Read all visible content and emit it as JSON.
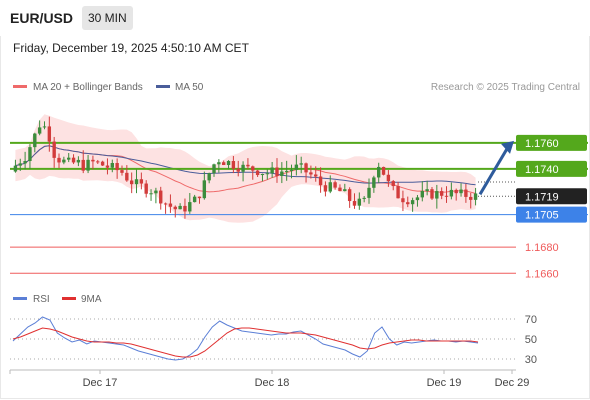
{
  "header": {
    "pair": "EUR/USD",
    "timeframe": "30 MIN",
    "datetime": "Friday, December 19, 2025 4:50:10 AM CET",
    "copyright": "Research © 2025 Trading Central"
  },
  "legend": {
    "ma20": "MA 20 + Bollinger Bands",
    "ma50": "MA 50",
    "rsi": "RSI",
    "rsi_ma": "9MA"
  },
  "colors": {
    "candle_up": "#3c8c3c",
    "candle_down": "#d23c3c",
    "ma20": "#ef6a6a",
    "ma50": "#4a5d9a",
    "bollinger": "#fde2e2",
    "resistance": "#54a81c",
    "support": "#3d82e8",
    "target": "#ef5b5b",
    "arrow": "#2e5b9c",
    "rsi": "#5b7fd6",
    "rsi_ma": "#e03030"
  },
  "chart_data": [
    {
      "type": "candlestick",
      "title": "EUR/USD",
      "timeframe": "30 MIN",
      "x_ticks": [
        "Dec 17",
        "Dec 18",
        "Dec 19",
        "Dec 29"
      ],
      "last_price": 1.1719,
      "ylim": [
        1.1651,
        1.1789
      ],
      "price_path": [
        1.1738,
        1.1745,
        1.175,
        1.1762,
        1.1775,
        1.177,
        1.175,
        1.1746,
        1.1744,
        1.1745,
        1.1742,
        1.1745,
        1.1744,
        1.1742,
        1.174,
        1.1738,
        1.1732,
        1.1728,
        1.1726,
        1.1724,
        1.172,
        1.1714,
        1.171,
        1.1708,
        1.1712,
        1.1716,
        1.1725,
        1.1738,
        1.1748,
        1.1746,
        1.1744,
        1.1742,
        1.174,
        1.174,
        1.1738,
        1.1737,
        1.1738,
        1.1738,
        1.174,
        1.1741,
        1.1738,
        1.1734,
        1.1728,
        1.1726,
        1.1724,
        1.1722,
        1.1716,
        1.1713,
        1.1715,
        1.1735,
        1.1745,
        1.173,
        1.1722,
        1.1718,
        1.1717,
        1.1718,
        1.172,
        1.1721,
        1.1721,
        1.1722,
        1.1721,
        1.172,
        1.172,
        1.1719
      ],
      "levels": [
        {
          "label": "1.1760",
          "value": 1.176,
          "kind": "resistance"
        },
        {
          "label": "1.1740",
          "value": 1.174,
          "kind": "resistance"
        },
        {
          "label": "1.1705",
          "value": 1.1705,
          "kind": "support"
        },
        {
          "label": "1.1680",
          "value": 1.168,
          "kind": "target"
        },
        {
          "label": "1.1660",
          "value": 1.166,
          "kind": "target"
        }
      ],
      "price_label": "1.1719",
      "forecast_arrow": {
        "from": 1.1719,
        "to": 1.176
      },
      "series": [
        {
          "name": "MA 20 + Bollinger Bands"
        },
        {
          "name": "MA 50"
        }
      ]
    },
    {
      "type": "line",
      "title": "RSI",
      "ylim": [
        23,
        79
      ],
      "ticks": [
        70,
        50,
        30
      ],
      "series": [
        {
          "name": "RSI",
          "values": [
            48,
            55,
            62,
            66,
            72,
            69,
            56,
            51,
            47,
            49,
            45,
            48,
            47,
            46,
            45,
            44,
            41,
            38,
            36,
            34,
            32,
            30,
            29,
            30,
            34,
            40,
            52,
            62,
            68,
            64,
            61,
            58,
            57,
            56,
            55,
            54,
            55,
            55,
            57,
            58,
            54,
            50,
            45,
            43,
            41,
            39,
            35,
            32,
            38,
            56,
            62,
            50,
            44,
            47,
            46,
            47,
            48,
            49,
            48,
            48,
            47,
            48,
            47,
            46
          ]
        },
        {
          "name": "9MA",
          "values": [
            50,
            52,
            55,
            58,
            61,
            60,
            58,
            55,
            52,
            50,
            48,
            47,
            47,
            47,
            46,
            46,
            45,
            43,
            41,
            39,
            37,
            35,
            33,
            32,
            32,
            34,
            38,
            44,
            50,
            56,
            60,
            61,
            61,
            60,
            59,
            58,
            57,
            56,
            56,
            56,
            55,
            54,
            52,
            50,
            48,
            46,
            44,
            41,
            40,
            41,
            44,
            46,
            47,
            48,
            49,
            49,
            48,
            48,
            48,
            48,
            48,
            48,
            48,
            47
          ]
        }
      ]
    }
  ]
}
